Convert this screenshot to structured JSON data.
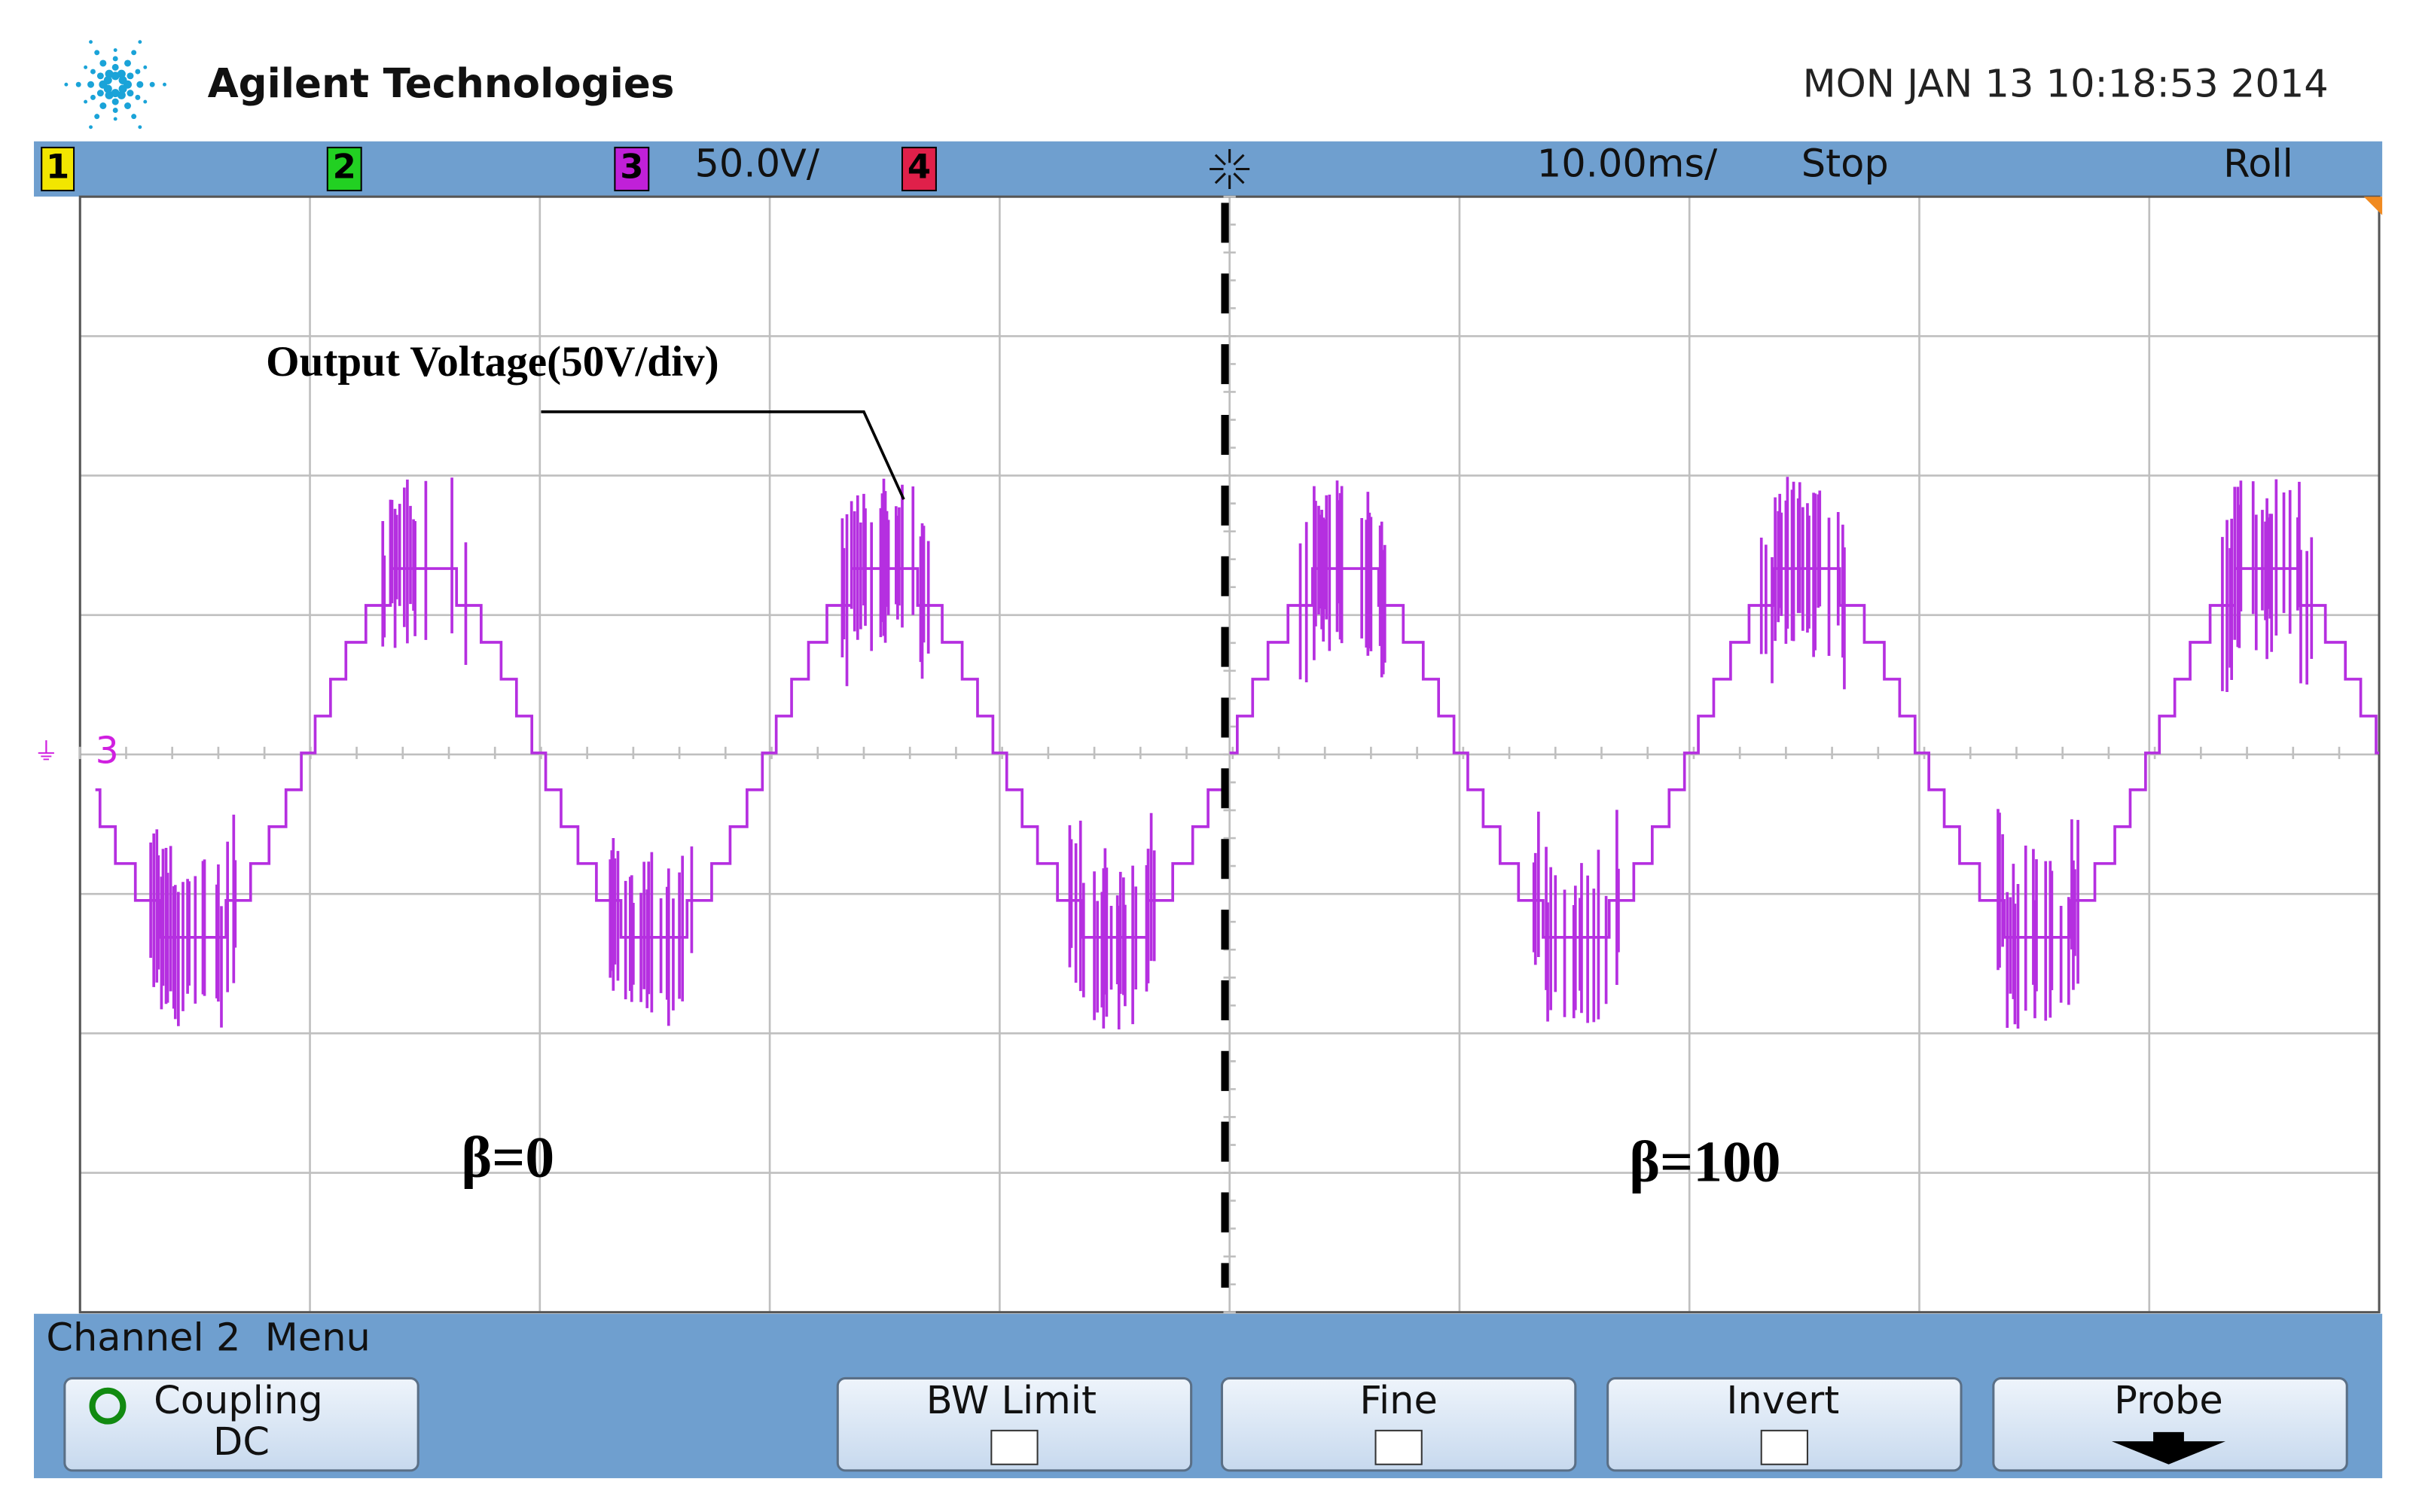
{
  "header": {
    "brand": "Agilent Technologies",
    "datetime": "MON JAN 13 10:18:53 2014"
  },
  "status_bar": {
    "channels": [
      "1",
      "2",
      "3",
      "4"
    ],
    "ch3_scale": "50.0V/",
    "timebase": "10.00ms/",
    "run_state": "Stop",
    "mode": "Roll"
  },
  "screen": {
    "channel_marker": "3",
    "annotation": "Output Voltage(50V/div)",
    "region_labels": [
      "β=0",
      "β=100"
    ]
  },
  "menu": {
    "title": "Channel 2  Menu",
    "softkeys": [
      {
        "label": "Coupling",
        "value": "DC"
      },
      {
        "label": "BW Limit"
      },
      {
        "label": "Fine"
      },
      {
        "label": "Invert"
      },
      {
        "label": "Probe"
      }
    ]
  }
}
